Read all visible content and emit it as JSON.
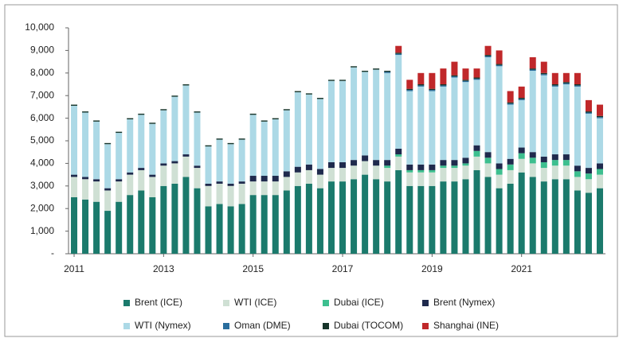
{
  "chart_data": {
    "type": "stacked_bar",
    "categories": [
      "2011",
      null,
      null,
      null,
      null,
      null,
      null,
      null,
      "2013",
      null,
      null,
      null,
      null,
      null,
      null,
      null,
      "2015",
      null,
      null,
      null,
      null,
      null,
      null,
      null,
      "2017",
      null,
      null,
      null,
      null,
      null,
      null,
      null,
      "2019",
      null,
      null,
      null,
      null,
      null,
      null,
      null,
      "2021",
      null,
      null,
      null,
      null,
      null,
      null,
      null
    ],
    "series": [
      {
        "name": "Brent (ICE)",
        "color": "#1b7a6c",
        "values": [
          2500,
          2400,
          2300,
          1900,
          2300,
          2600,
          2800,
          2500,
          3000,
          3100,
          3400,
          2900,
          2100,
          2200,
          2100,
          2200,
          2600,
          2600,
          2600,
          2800,
          3000,
          3100,
          2900,
          3200,
          3200,
          3300,
          3500,
          3300,
          3200,
          3700,
          3000,
          3000,
          3000,
          3200,
          3200,
          3300,
          3700,
          3400,
          2900,
          3100,
          3600,
          3400,
          3200,
          3300,
          3300,
          2800,
          2700,
          2900
        ]
      },
      {
        "name": "WTI (ICE)",
        "color": "#cfe0d4",
        "values": [
          900,
          900,
          900,
          900,
          900,
          900,
          900,
          900,
          900,
          900,
          900,
          900,
          900,
          900,
          900,
          900,
          600,
          600,
          600,
          600,
          600,
          600,
          600,
          600,
          600,
          600,
          600,
          600,
          600,
          600,
          600,
          600,
          600,
          600,
          600,
          600,
          600,
          600,
          600,
          600,
          600,
          600,
          600,
          600,
          600,
          600,
          600,
          600
        ]
      },
      {
        "name": "Dubai (ICE)",
        "color": "#3dbf8f",
        "values": [
          0,
          0,
          0,
          0,
          0,
          0,
          0,
          0,
          0,
          0,
          0,
          0,
          0,
          0,
          0,
          0,
          0,
          0,
          0,
          0,
          0,
          0,
          0,
          0,
          0,
          0,
          0,
          0,
          100,
          100,
          100,
          100,
          100,
          100,
          100,
          100,
          250,
          250,
          250,
          250,
          250,
          250,
          250,
          250,
          250,
          250,
          250,
          250
        ]
      },
      {
        "name": "Brent (Nymex)",
        "color": "#1f2a4d",
        "values": [
          100,
          100,
          100,
          100,
          100,
          100,
          100,
          100,
          100,
          100,
          100,
          100,
          100,
          100,
          100,
          100,
          250,
          250,
          250,
          250,
          250,
          250,
          250,
          250,
          250,
          250,
          250,
          250,
          250,
          250,
          250,
          250,
          250,
          250,
          250,
          250,
          250,
          250,
          250,
          250,
          250,
          250,
          250,
          250,
          250,
          250,
          250,
          250
        ]
      },
      {
        "name": "WTI (Nymex)",
        "color": "#acd9e6",
        "values": [
          3050,
          2850,
          2550,
          1950,
          2050,
          2350,
          2350,
          2250,
          2350,
          2850,
          3050,
          2350,
          1650,
          1850,
          1750,
          1850,
          2700,
          2400,
          2500,
          2700,
          3300,
          3100,
          3100,
          3600,
          3600,
          4100,
          3700,
          4000,
          3850,
          4150,
          3250,
          3450,
          3250,
          3250,
          3650,
          3350,
          2900,
          4200,
          4300,
          2400,
          2100,
          3600,
          3600,
          3000,
          3100,
          3500,
          2400,
          2000
        ]
      },
      {
        "name": "Oman (DME)",
        "color": "#2a6e9e",
        "values": [
          0,
          0,
          0,
          0,
          0,
          0,
          0,
          0,
          0,
          0,
          0,
          0,
          0,
          0,
          0,
          0,
          0,
          0,
          0,
          0,
          0,
          0,
          0,
          0,
          0,
          0,
          0,
          0,
          50,
          50,
          50,
          50,
          50,
          50,
          50,
          50,
          50,
          50,
          50,
          50,
          50,
          50,
          50,
          50,
          50,
          50,
          50,
          50
        ]
      },
      {
        "name": "Dubai (TOCOM)",
        "color": "#17352a",
        "values": [
          50,
          50,
          50,
          50,
          50,
          50,
          50,
          50,
          50,
          50,
          50,
          50,
          50,
          50,
          50,
          50,
          50,
          50,
          50,
          50,
          50,
          50,
          50,
          50,
          50,
          50,
          50,
          50,
          50,
          50,
          50,
          50,
          50,
          50,
          50,
          50,
          50,
          50,
          50,
          50,
          50,
          50,
          50,
          50,
          50,
          50,
          50,
          50
        ]
      },
      {
        "name": "Shanghai (INE)",
        "color": "#c0282a",
        "values": [
          0,
          0,
          0,
          0,
          0,
          0,
          0,
          0,
          0,
          0,
          0,
          0,
          0,
          0,
          0,
          0,
          0,
          0,
          0,
          0,
          0,
          0,
          0,
          0,
          0,
          0,
          0,
          0,
          0,
          300,
          400,
          500,
          700,
          700,
          600,
          500,
          400,
          400,
          600,
          500,
          500,
          500,
          500,
          500,
          400,
          500,
          500,
          500
        ]
      }
    ],
    "ylim": [
      0,
      10000
    ],
    "yticks": [
      {
        "value": 0,
        "label": "-"
      },
      {
        "value": 1000,
        "label": "1,000"
      },
      {
        "value": 2000,
        "label": "2,000"
      },
      {
        "value": 3000,
        "label": "3,000"
      },
      {
        "value": 4000,
        "label": "4,000"
      },
      {
        "value": 5000,
        "label": "5,000"
      },
      {
        "value": 6000,
        "label": "6,000"
      },
      {
        "value": 7000,
        "label": "7,000"
      },
      {
        "value": 8000,
        "label": "8,000"
      },
      {
        "value": 9000,
        "label": "9,000"
      },
      {
        "value": 10000,
        "label": "10,000"
      }
    ],
    "grid": false
  }
}
